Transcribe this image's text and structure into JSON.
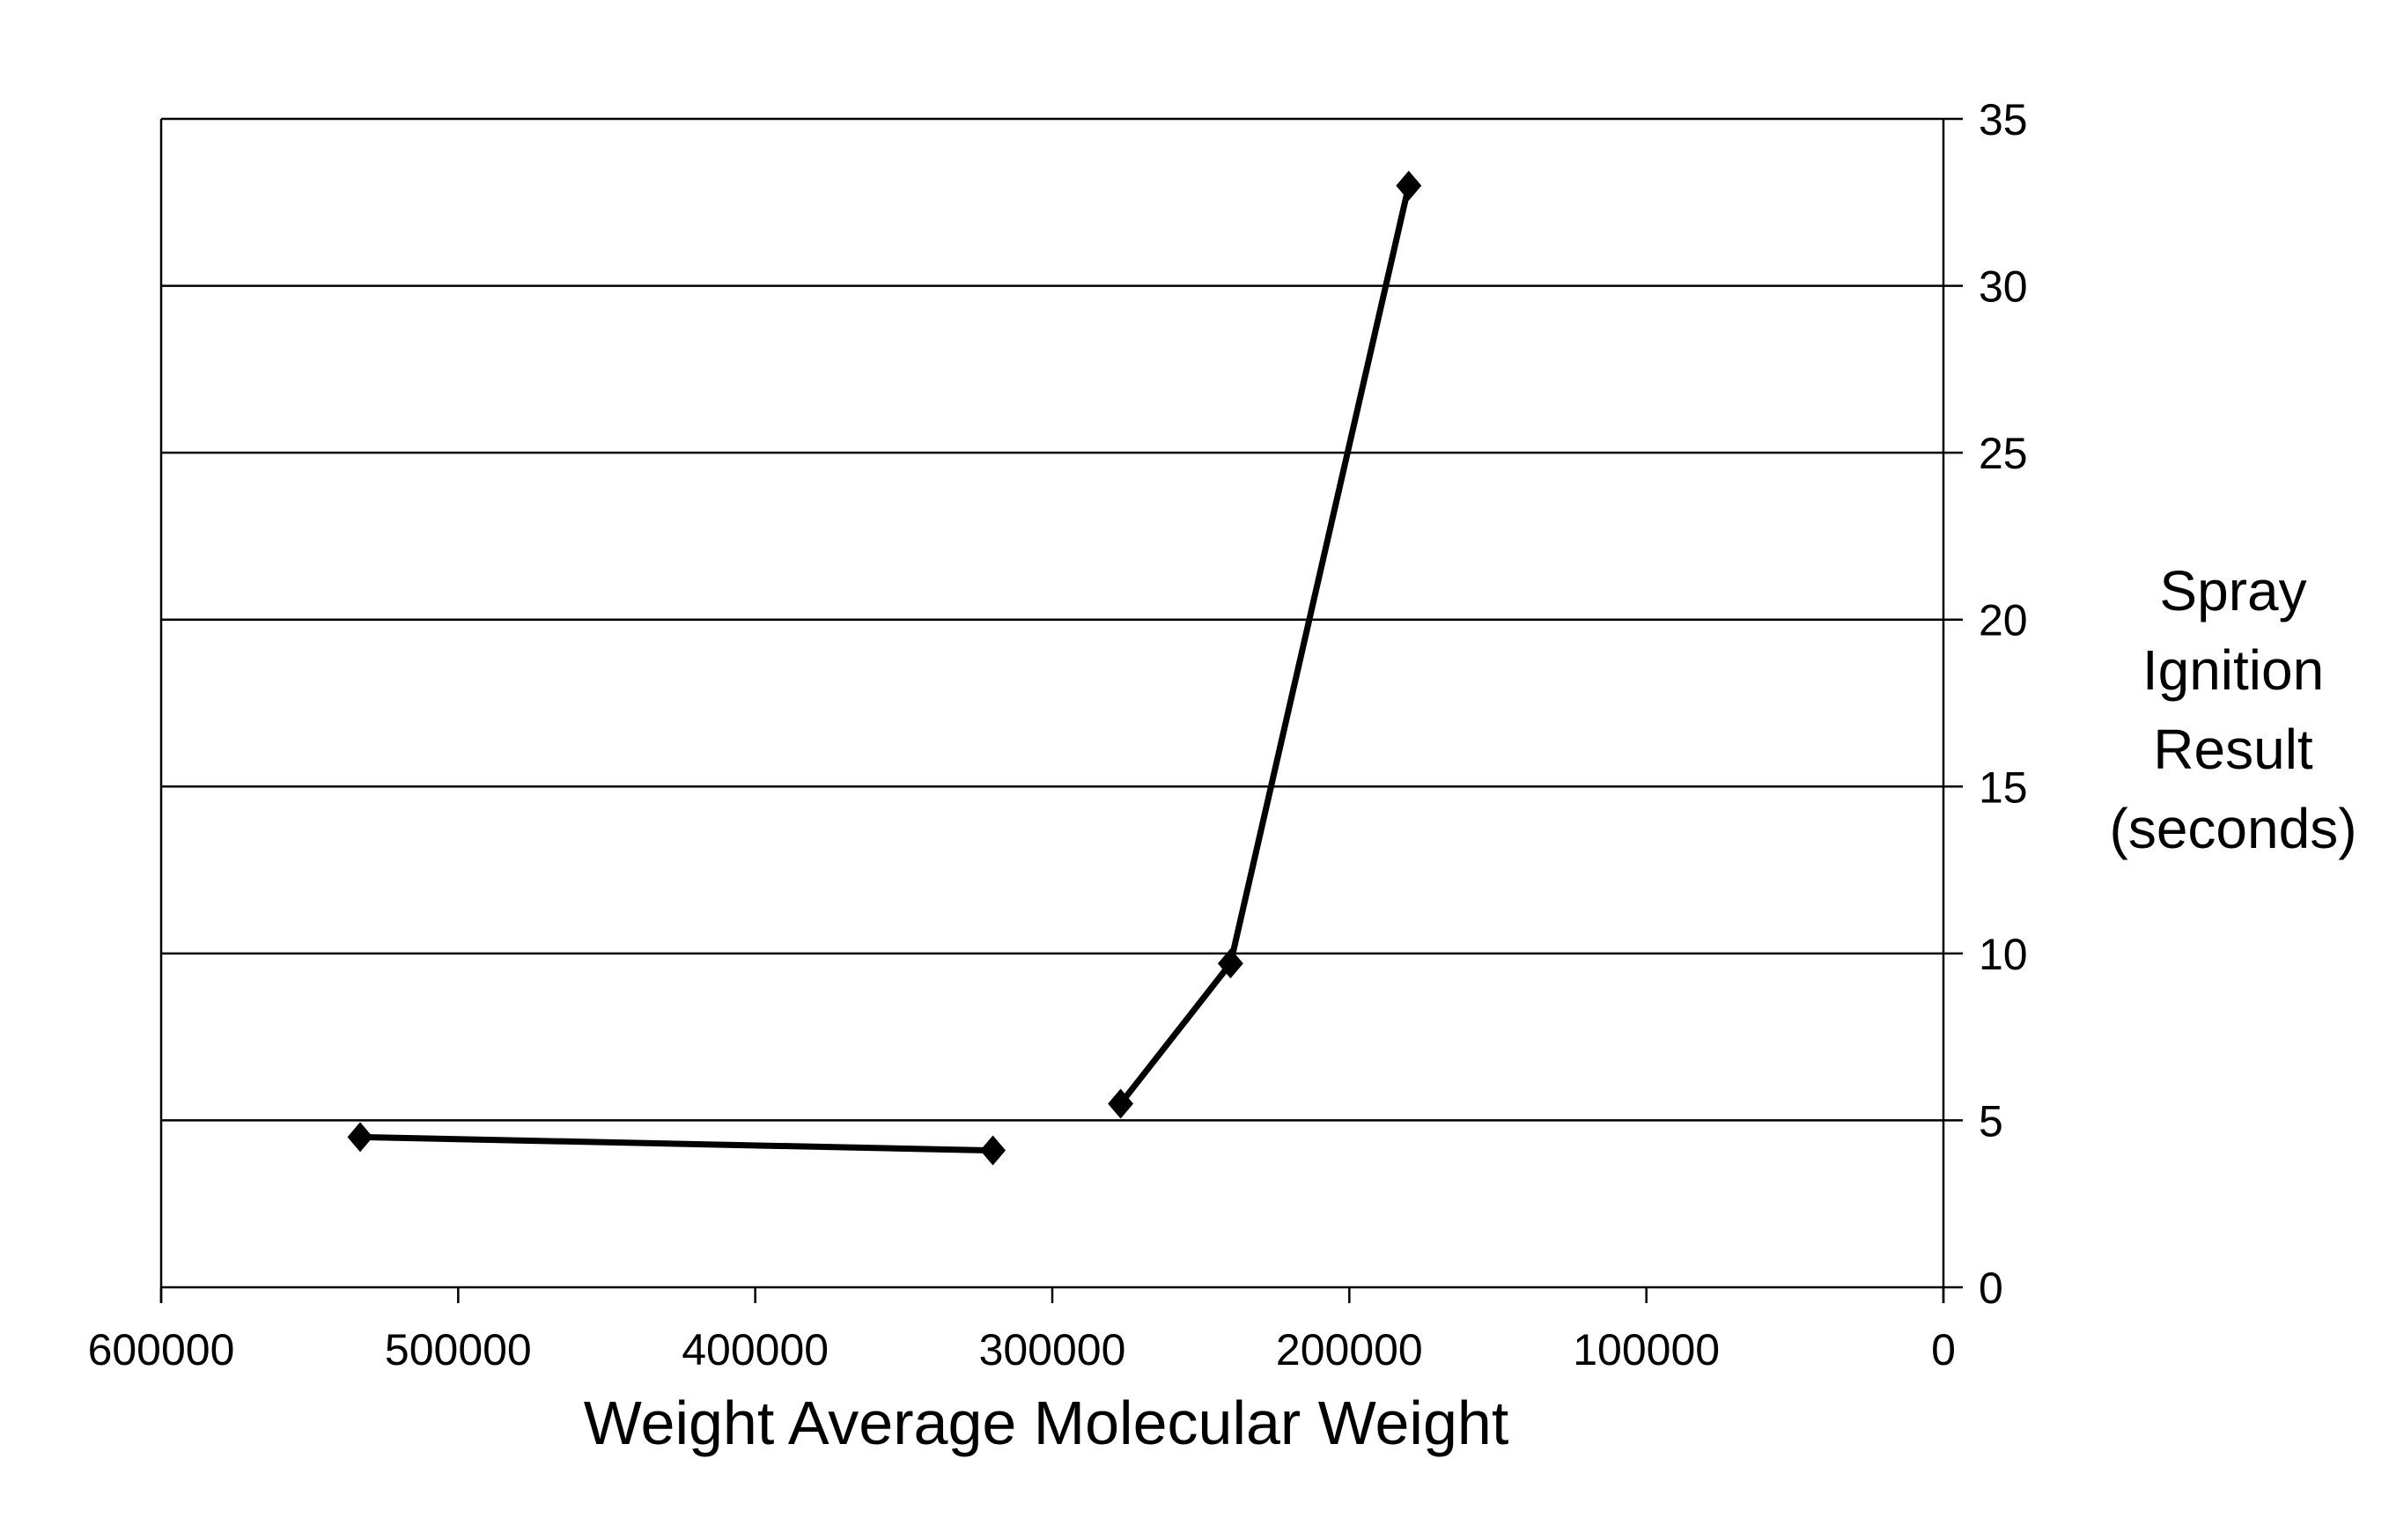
{
  "chart_data": {
    "type": "line",
    "title": "",
    "xlabel": "Weight Average Molecular Weight",
    "ylabel_lines": [
      "Spray",
      "Ignition",
      "Result",
      "(seconds)"
    ],
    "xlim": [
      600000,
      0
    ],
    "x_reversed": true,
    "ylim": [
      0,
      35
    ],
    "x_ticks": [
      600000,
      500000,
      400000,
      300000,
      200000,
      100000,
      0
    ],
    "x_tick_labels": [
      "600000",
      "500000",
      "400000",
      "300000",
      "200000",
      "100000",
      "0"
    ],
    "y_ticks": [
      0,
      5,
      10,
      15,
      20,
      25,
      30,
      35
    ],
    "y_tick_labels": [
      "0",
      "5",
      "10",
      "15",
      "20",
      "25",
      "30",
      "35"
    ],
    "y_axis_side": "right",
    "grid": "horizontal",
    "legend": "none",
    "marker": "diamond",
    "line_color": "#000000",
    "series": [
      {
        "segments": [
          [
            {
              "x": 533000,
              "y": 4.5
            },
            {
              "x": 320000,
              "y": 4.1
            }
          ],
          [
            {
              "x": 277000,
              "y": 5.5
            },
            {
              "x": 240000,
              "y": 9.7
            },
            {
              "x": 180000,
              "y": 33.0
            }
          ]
        ]
      }
    ]
  }
}
